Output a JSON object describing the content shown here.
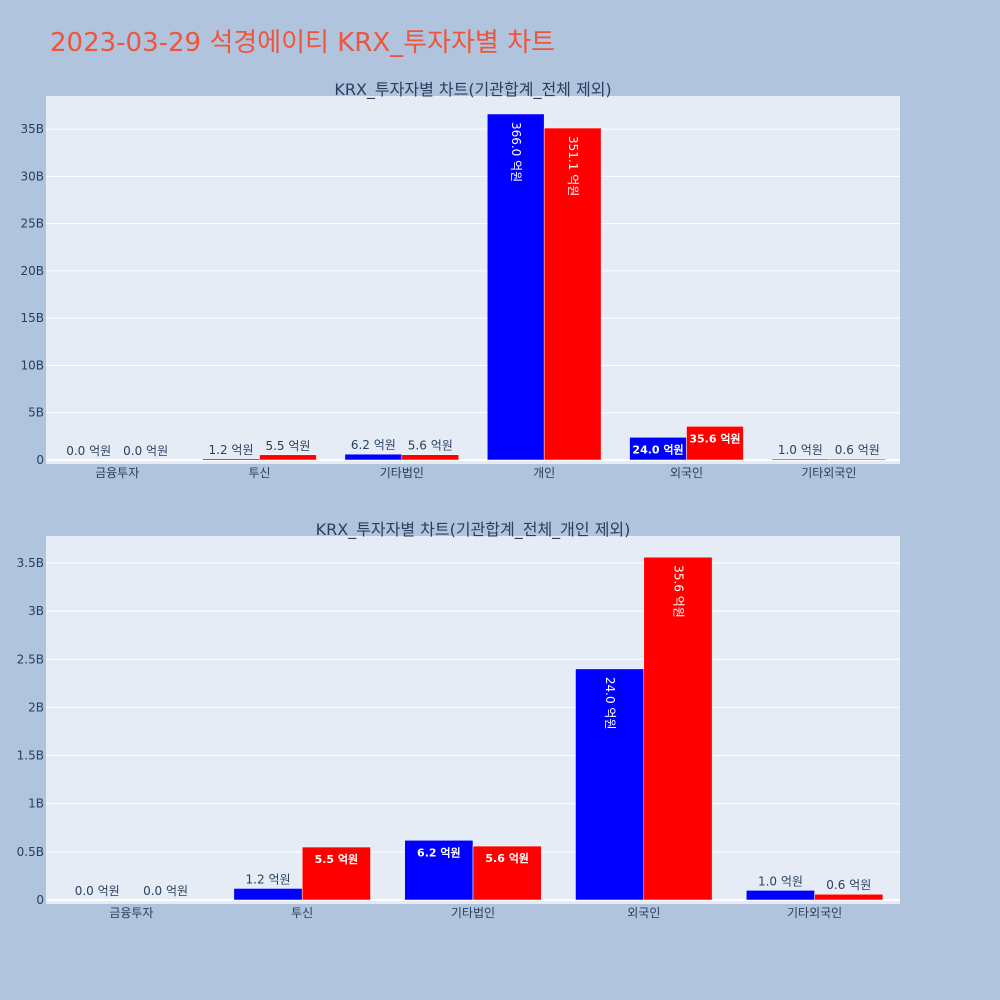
{
  "page_title": "2023-03-29 석경에이티 KRX_투자자별 차트",
  "colors": {
    "page_bg": "#b0c4de",
    "plot_bg": "#e5ecf6",
    "title": "#ef553b",
    "series_blue": "#0000ff",
    "series_red": "#ff0000",
    "grid": "#ffffff",
    "axis_text": "#2a3f5f"
  },
  "chart_data": [
    {
      "type": "bar",
      "title": "KRX_투자자별 차트(기관합계_전체 제외)",
      "categories": [
        "금융투자",
        "투신",
        "기타법인",
        "개인",
        "외국인",
        "기타외국인"
      ],
      "series": [
        {
          "color": "#0000ff",
          "values": [
            0.0,
            0.12,
            0.62,
            36.6,
            2.4,
            0.1
          ],
          "labels": [
            "0.0 억원",
            "1.2 억원",
            "6.2 억원",
            "366.0 억원",
            "24.0 억원",
            "1.0 억원"
          ]
        },
        {
          "color": "#ff0000",
          "values": [
            0.0,
            0.55,
            0.56,
            35.11,
            3.56,
            0.06
          ],
          "labels": [
            "0.0 억원",
            "5.5 억원",
            "5.6 억원",
            "351.1 억원",
            "35.6 억원",
            "0.6 억원"
          ]
        }
      ],
      "ylim": [
        0,
        38.5
      ],
      "yticks": [
        0,
        5,
        10,
        15,
        20,
        25,
        30,
        35
      ],
      "ytick_labels": [
        "0",
        "5B",
        "10B",
        "15B",
        "20B",
        "25B",
        "30B",
        "35B"
      ],
      "grid": true
    },
    {
      "type": "bar",
      "title": "KRX_투자자별 차트(기관합계_전체_개인 제외)",
      "categories": [
        "금융투자",
        "투신",
        "기타법인",
        "외국인",
        "기타외국인"
      ],
      "series": [
        {
          "color": "#0000ff",
          "values": [
            0.0,
            0.12,
            0.62,
            2.4,
            0.1
          ],
          "labels": [
            "0.0 억원",
            "1.2 억원",
            "6.2 억원",
            "24.0 억원",
            "1.0 억원"
          ]
        },
        {
          "color": "#ff0000",
          "values": [
            0.0,
            0.55,
            0.56,
            3.56,
            0.06
          ],
          "labels": [
            "0.0 억원",
            "5.5 억원",
            "5.6 억원",
            "35.6 억원",
            "0.6 억원"
          ]
        }
      ],
      "ylim": [
        0,
        3.78
      ],
      "yticks": [
        0,
        0.5,
        1,
        1.5,
        2,
        2.5,
        3,
        3.5
      ],
      "ytick_labels": [
        "0",
        "0.5B",
        "1B",
        "1.5B",
        "2B",
        "2.5B",
        "3B",
        "3.5B"
      ],
      "grid": true
    }
  ]
}
